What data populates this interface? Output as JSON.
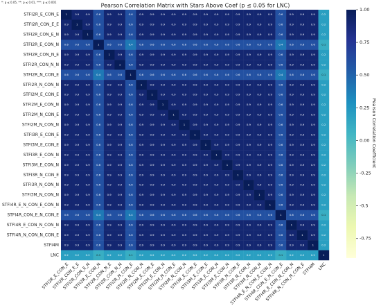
{
  "chart_data": {
    "type": "heatmap",
    "title": "Pearson Correlation Matrix with Stars Above Coef (p ≤ 0.05 for LNC)",
    "note": "*: p ≤ 0.05, **: p ≤ 0.01, ***: p ≤ 0.001",
    "colorbar_label": "Pearson Correlation Coefficient",
    "colormap": [
      "#ffffd9",
      "#edf8b1",
      "#c7e9b4",
      "#7fcdbb",
      "#41b6c4",
      "#1d91c0",
      "#225ea8",
      "#253494",
      "#081d58"
    ],
    "zlim": [
      -0.9,
      1
    ],
    "zticks": [
      -0.75,
      -0.5,
      -0.25,
      {
        "value": 0,
        "label": "0.00"
      },
      0.25,
      {
        "value": 0.5,
        "label": "0.50"
      },
      0.75,
      {
        "value": 1,
        "label": "1.00"
      }
    ],
    "labels": [
      "STFI2R_E_CON_E",
      "STFI2R_CON_E_E",
      "STFI2R_CON_E_N",
      "STFI2R_E_CON_N",
      "STFI2R_CON_N_E",
      "STFI2R_CON_N_N",
      "STFI2R_N_CON_E",
      "STFI2R_N_CON_N",
      "STFI2M_E_CON_E",
      "STFI2M_E_CON_N",
      "STFI2M_N_CON_E",
      "STFI2M_N_CON_N",
      "STFI3R_E_CON_E",
      "STFI3M_E_CON_E",
      "STFI3R_E_CON_N",
      "STFI3M_E_CON_N",
      "STFI3R_N_CON_E",
      "STFI3R_N_CON_N",
      "STFI3M_N_CON_N",
      "STFI4R_E_N_CON_E_CON_N",
      "STFI4R_CON_E_N_CON_E",
      "STFI4R_E_CON_N_CON_N",
      "STFI4R_N_CON_N_CON_E",
      "STFI4M",
      "LNC"
    ],
    "values": [
      [
        1,
        0.9,
        0.9,
        0.6,
        0.9,
        0.9,
        0.6,
        0.9,
        0.9,
        0.9,
        0.9,
        0.9,
        0.9,
        0.9,
        0.9,
        0.9,
        0.9,
        0.9,
        0.9,
        0.9,
        0.6,
        0.9,
        0.9,
        0.9,
        0.2
      ],
      [
        0.9,
        1,
        0.9,
        0.6,
        0.9,
        0.9,
        0.6,
        0.9,
        0.9,
        0.9,
        0.9,
        0.9,
        0.9,
        0.9,
        0.9,
        0.9,
        0.9,
        0.9,
        0.9,
        0.9,
        0.6,
        0.9,
        0.9,
        0.9,
        0.2
      ],
      [
        0.9,
        0.9,
        1,
        0.6,
        0.9,
        0.9,
        0.6,
        0.9,
        0.9,
        0.9,
        0.9,
        0.9,
        0.9,
        0.9,
        0.9,
        0.9,
        0.9,
        0.9,
        0.9,
        0.9,
        0.6,
        0.9,
        0.9,
        0.9,
        0.2
      ],
      [
        0.6,
        0.6,
        0.6,
        1,
        0.6,
        0.6,
        0.4,
        0.6,
        0.6,
        0.6,
        0.6,
        0.6,
        0.6,
        0.6,
        0.6,
        0.6,
        0.6,
        0.6,
        0.6,
        0.6,
        0.4,
        0.6,
        0.6,
        0.6,
        0.1
      ],
      [
        0.9,
        0.9,
        0.9,
        0.6,
        1,
        0.9,
        0.6,
        0.9,
        0.9,
        0.9,
        0.9,
        0.9,
        0.9,
        0.9,
        0.9,
        0.9,
        0.9,
        0.9,
        0.9,
        0.9,
        0.6,
        0.9,
        0.9,
        0.9,
        0.2
      ],
      [
        0.9,
        0.9,
        0.9,
        0.6,
        0.9,
        1,
        0.6,
        0.9,
        0.9,
        0.9,
        0.9,
        0.9,
        0.9,
        0.9,
        0.9,
        0.9,
        0.9,
        0.9,
        0.9,
        0.9,
        0.6,
        0.9,
        0.9,
        0.9,
        0.2
      ],
      [
        0.6,
        0.6,
        0.6,
        0.4,
        0.6,
        0.6,
        1,
        0.6,
        0.6,
        0.6,
        0.6,
        0.6,
        0.6,
        0.6,
        0.6,
        0.6,
        0.6,
        0.6,
        0.6,
        0.6,
        0.4,
        0.6,
        0.6,
        0.6,
        0.1
      ],
      [
        0.9,
        0.9,
        0.9,
        0.6,
        0.9,
        0.9,
        0.6,
        1,
        0.9,
        0.9,
        0.9,
        0.9,
        0.9,
        0.9,
        0.9,
        0.9,
        0.9,
        0.9,
        0.9,
        0.9,
        0.6,
        0.9,
        0.9,
        0.9,
        0.2
      ],
      [
        0.9,
        0.9,
        0.9,
        0.6,
        0.9,
        0.9,
        0.6,
        0.9,
        1,
        0.9,
        0.9,
        0.9,
        0.9,
        0.9,
        0.9,
        0.9,
        0.9,
        0.9,
        0.9,
        0.9,
        0.6,
        0.9,
        0.9,
        0.9,
        0.2
      ],
      [
        0.9,
        0.9,
        0.9,
        0.6,
        0.9,
        0.9,
        0.6,
        0.9,
        0.9,
        1,
        0.9,
        0.9,
        0.9,
        0.9,
        0.9,
        0.9,
        0.9,
        0.9,
        0.9,
        0.9,
        0.6,
        0.9,
        0.9,
        0.9,
        0.2
      ],
      [
        0.9,
        0.9,
        0.9,
        0.6,
        0.9,
        0.9,
        0.6,
        0.9,
        0.9,
        0.9,
        1,
        0.9,
        0.9,
        0.9,
        0.9,
        0.9,
        0.9,
        0.9,
        0.9,
        0.9,
        0.6,
        0.9,
        0.9,
        0.9,
        0.2
      ],
      [
        0.9,
        0.9,
        0.9,
        0.6,
        0.9,
        0.9,
        0.6,
        0.9,
        0.9,
        0.9,
        0.9,
        1,
        0.9,
        0.9,
        0.9,
        0.9,
        0.9,
        0.9,
        0.9,
        0.9,
        0.6,
        0.9,
        0.9,
        0.9,
        0.2
      ],
      [
        0.9,
        0.9,
        0.9,
        0.6,
        0.9,
        0.9,
        0.6,
        0.9,
        0.9,
        0.9,
        0.9,
        0.9,
        1,
        0.9,
        0.9,
        0.9,
        0.9,
        0.9,
        0.9,
        0.9,
        0.6,
        0.9,
        0.9,
        0.9,
        0.2
      ],
      [
        0.9,
        0.9,
        0.9,
        0.6,
        0.9,
        0.9,
        0.6,
        0.9,
        0.9,
        0.9,
        0.9,
        0.9,
        0.9,
        1,
        0.9,
        0.9,
        0.9,
        0.9,
        0.9,
        0.9,
        0.6,
        0.9,
        0.9,
        0.9,
        0.2
      ],
      [
        0.9,
        0.9,
        0.9,
        0.6,
        0.9,
        0.9,
        0.6,
        0.9,
        0.9,
        0.9,
        0.9,
        0.9,
        0.9,
        0.9,
        1,
        0.9,
        0.9,
        0.9,
        0.9,
        0.9,
        0.6,
        0.9,
        0.9,
        0.9,
        0.2
      ],
      [
        0.9,
        0.9,
        0.9,
        0.6,
        0.9,
        0.9,
        0.6,
        0.9,
        0.9,
        0.9,
        0.9,
        0.9,
        0.9,
        0.9,
        0.9,
        1,
        0.9,
        0.9,
        0.9,
        0.9,
        0.6,
        0.9,
        0.9,
        0.9,
        0.2
      ],
      [
        0.9,
        0.9,
        0.9,
        0.6,
        0.9,
        0.9,
        0.6,
        0.9,
        0.9,
        0.9,
        0.9,
        0.9,
        0.9,
        0.9,
        0.9,
        0.9,
        1,
        0.9,
        0.9,
        0.9,
        0.6,
        0.9,
        0.9,
        0.9,
        0.2
      ],
      [
        0.9,
        0.9,
        0.9,
        0.6,
        0.9,
        0.9,
        0.6,
        0.9,
        0.9,
        0.9,
        0.9,
        0.9,
        0.9,
        0.9,
        0.9,
        0.9,
        0.9,
        1,
        0.9,
        0.9,
        0.6,
        0.9,
        0.9,
        0.9,
        0.2
      ],
      [
        0.9,
        0.9,
        0.9,
        0.6,
        0.9,
        0.9,
        0.6,
        0.9,
        0.9,
        0.9,
        0.9,
        0.9,
        0.9,
        0.9,
        0.9,
        0.9,
        0.9,
        0.9,
        1,
        0.9,
        0.6,
        0.9,
        0.9,
        0.9,
        0.2
      ],
      [
        0.9,
        0.9,
        0.9,
        0.6,
        0.9,
        0.9,
        0.6,
        0.9,
        0.9,
        0.9,
        0.9,
        0.9,
        0.9,
        0.9,
        0.9,
        0.9,
        0.9,
        0.9,
        0.9,
        1,
        0.6,
        0.9,
        0.9,
        0.9,
        0.2
      ],
      [
        0.6,
        0.6,
        0.6,
        0.4,
        0.6,
        0.6,
        0.4,
        0.6,
        0.6,
        0.6,
        0.6,
        0.6,
        0.6,
        0.6,
        0.6,
        0.6,
        0.6,
        0.6,
        0.6,
        0.6,
        1,
        0.6,
        0.6,
        0.6,
        0.1
      ],
      [
        0.9,
        0.9,
        0.9,
        0.6,
        0.9,
        0.9,
        0.6,
        0.9,
        0.9,
        0.9,
        0.9,
        0.9,
        0.9,
        0.9,
        0.9,
        0.9,
        0.9,
        0.9,
        0.9,
        0.9,
        0.6,
        1,
        0.9,
        0.9,
        0.2
      ],
      [
        0.9,
        0.9,
        0.9,
        0.6,
        0.9,
        0.9,
        0.6,
        0.9,
        0.9,
        0.9,
        0.9,
        0.9,
        0.9,
        0.9,
        0.9,
        0.9,
        0.9,
        0.9,
        0.9,
        0.9,
        0.6,
        0.9,
        1,
        0.9,
        0.2
      ],
      [
        0.9,
        0.9,
        0.9,
        0.6,
        0.9,
        0.9,
        0.6,
        0.9,
        0.9,
        0.9,
        0.9,
        0.9,
        0.9,
        0.9,
        0.9,
        0.9,
        0.9,
        0.9,
        0.9,
        0.9,
        0.6,
        0.9,
        0.9,
        1,
        0.2
      ],
      [
        0.2,
        0.2,
        0.2,
        0.1,
        0.2,
        0.2,
        0.1,
        0.2,
        0.2,
        0.2,
        0.2,
        0.2,
        0.2,
        0.2,
        0.2,
        0.2,
        0.2,
        0.2,
        0.2,
        0.2,
        0.1,
        0.2,
        0.2,
        0.2,
        1
      ]
    ]
  }
}
